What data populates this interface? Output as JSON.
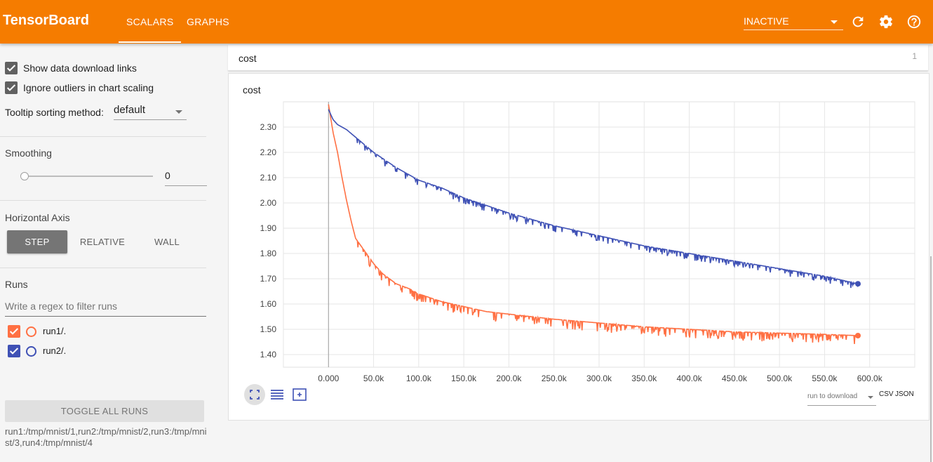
{
  "header": {
    "brand": "TensorBoard",
    "tabs": [
      {
        "label": "SCALARS",
        "active": true
      },
      {
        "label": "GRAPHS",
        "active": false
      }
    ],
    "run_select_value": "INACTIVE",
    "icons": [
      "refresh-icon",
      "settings-icon",
      "help-icon"
    ],
    "color": "#f57c00"
  },
  "sidebar": {
    "show_download_links": {
      "label": "Show data download links",
      "checked": true
    },
    "ignore_outliers": {
      "label": "Ignore outliers in chart scaling",
      "checked": true
    },
    "tooltip_sorting": {
      "label": "Tooltip sorting method:",
      "value": "default"
    },
    "smoothing": {
      "title": "Smoothing",
      "value": "0",
      "fraction": 0
    },
    "horizontal_axis": {
      "title": "Horizontal Axis",
      "options": [
        {
          "label": "STEP",
          "active": true
        },
        {
          "label": "RELATIVE",
          "active": false
        },
        {
          "label": "WALL",
          "active": false
        }
      ]
    },
    "runs": {
      "title": "Runs",
      "filter_placeholder": "Write a regex to filter runs",
      "items": [
        {
          "name": "run1/.",
          "checked": true,
          "color": "#ff7043"
        },
        {
          "name": "run2/.",
          "checked": true,
          "color": "#3f51b5"
        }
      ],
      "toggle_label": "TOGGLE ALL RUNS",
      "paths": "run1:/tmp/mnist/1,run2:/tmp/mnist/2,run3:/tmp/mnist/3,run4:/tmp/mnist/4"
    }
  },
  "main": {
    "category": {
      "title": "cost",
      "count": "1"
    },
    "card": {
      "title": "cost",
      "download": {
        "select_label": "run to download",
        "csv": "CSV",
        "json": "JSON"
      }
    }
  },
  "chart_data": {
    "type": "line",
    "title": "cost",
    "xlabel": "",
    "ylabel": "",
    "xlim": [
      -50000,
      650000
    ],
    "ylim": [
      1.35,
      2.4
    ],
    "x_ticks": [
      "0.000",
      "50.0k",
      "100.0k",
      "150.0k",
      "200.0k",
      "250.0k",
      "300.0k",
      "350.0k",
      "400.0k",
      "450.0k",
      "500.0k",
      "550.0k",
      "600.0k"
    ],
    "x_tick_values": [
      0,
      50000,
      100000,
      150000,
      200000,
      250000,
      300000,
      350000,
      400000,
      450000,
      500000,
      550000,
      600000
    ],
    "y_ticks": [
      "1.40",
      "1.50",
      "1.60",
      "1.70",
      "1.80",
      "1.90",
      "2.00",
      "2.10",
      "2.20",
      "2.30"
    ],
    "y_tick_values": [
      1.4,
      1.5,
      1.6,
      1.7,
      1.8,
      1.9,
      2.0,
      2.1,
      2.2,
      2.3
    ],
    "grid": true,
    "series": [
      {
        "color": "#ff7043",
        "x": [
          0,
          5000,
          10000,
          15000,
          20000,
          25000,
          30000,
          40000,
          50000,
          60000,
          75000,
          90000,
          100000,
          125000,
          150000,
          175000,
          200000,
          250000,
          300000,
          350000,
          400000,
          450000,
          500000,
          550000,
          587000
        ],
        "y": [
          2.39,
          2.28,
          2.2,
          2.1,
          2.01,
          1.93,
          1.86,
          1.81,
          1.76,
          1.72,
          1.68,
          1.66,
          1.64,
          1.61,
          1.59,
          1.57,
          1.56,
          1.54,
          1.525,
          1.51,
          1.5,
          1.49,
          1.485,
          1.48,
          1.475
        ]
      },
      {
        "color": "#3f51b5",
        "x": [
          0,
          5000,
          10000,
          20000,
          30000,
          40000,
          50000,
          75000,
          100000,
          125000,
          150000,
          175000,
          200000,
          250000,
          300000,
          350000,
          400000,
          450000,
          500000,
          550000,
          587000
        ],
        "y": [
          2.37,
          2.33,
          2.31,
          2.29,
          2.26,
          2.23,
          2.2,
          2.14,
          2.09,
          2.06,
          2.02,
          1.99,
          1.96,
          1.91,
          1.87,
          1.83,
          1.8,
          1.77,
          1.74,
          1.71,
          1.68
        ]
      }
    ]
  }
}
